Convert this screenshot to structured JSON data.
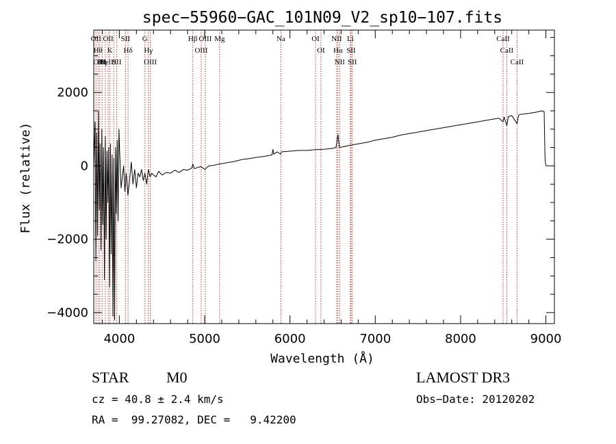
{
  "chart_data": {
    "type": "line",
    "title": "spec−55960−GAC_101N09_V2_sp10−107.fits",
    "xlabel": "Wavelength (Å)",
    "ylabel": "Flux (relative)",
    "xlim": [
      3700,
      9100
    ],
    "ylim": [
      -4300,
      3700
    ],
    "xticks": [
      4000,
      5000,
      6000,
      7000,
      8000,
      9000
    ],
    "xtick_labels": [
      "4000",
      "5000",
      "6000",
      "7000",
      "8000",
      "9000"
    ],
    "yticks": [
      -4000,
      -2000,
      0,
      2000
    ],
    "ytick_labels": [
      "−4000",
      "−2000",
      "0",
      "2000"
    ],
    "series": [
      {
        "name": "flux",
        "x": [
          3700,
          3715,
          3725,
          3735,
          3745,
          3755,
          3765,
          3775,
          3785,
          3795,
          3805,
          3815,
          3825,
          3835,
          3845,
          3855,
          3865,
          3875,
          3885,
          3895,
          3905,
          3915,
          3925,
          3935,
          3945,
          3955,
          3965,
          3975,
          3985,
          3995,
          4005,
          4020,
          4035,
          4050,
          4065,
          4080,
          4100,
          4120,
          4140,
          4160,
          4180,
          4200,
          4220,
          4240,
          4260,
          4280,
          4300,
          4320,
          4340,
          4360,
          4380,
          4400,
          4430,
          4460,
          4500,
          4550,
          4600,
          4650,
          4700,
          4750,
          4800,
          4850,
          4861,
          4880,
          4920,
          4960,
          5000,
          5050,
          5100,
          5150,
          5200,
          5250,
          5300,
          5350,
          5400,
          5450,
          5500,
          5550,
          5600,
          5650,
          5700,
          5750,
          5790,
          5800,
          5810,
          5830,
          5850,
          5890,
          5900,
          5950,
          6000,
          6100,
          6200,
          6300,
          6400,
          6500,
          6540,
          6563,
          6580,
          6600,
          6700,
          6800,
          6900,
          7000,
          7100,
          7200,
          7300,
          7400,
          7500,
          7600,
          7700,
          7800,
          7900,
          8000,
          8100,
          8200,
          8300,
          8400,
          8450,
          8498,
          8510,
          8542,
          8560,
          8600,
          8662,
          8680,
          8700,
          8800,
          8900,
          8950,
          8980,
          8990,
          9000
        ],
        "y": [
          -100,
          1200,
          -2600,
          900,
          -1900,
          1500,
          -1200,
          600,
          -2300,
          1000,
          -1600,
          500,
          -3100,
          800,
          -2000,
          400,
          -1000,
          500,
          -3300,
          600,
          -2400,
          300,
          -4100,
          200,
          -4200,
          500,
          -1300,
          700,
          -1500,
          1000,
          300,
          -600,
          -300,
          0,
          -700,
          -200,
          -800,
          -400,
          100,
          -500,
          -100,
          -600,
          -200,
          -300,
          -100,
          -400,
          -200,
          -500,
          -100,
          -300,
          -200,
          -250,
          -300,
          -150,
          -250,
          -180,
          -200,
          -120,
          -180,
          -100,
          -120,
          -60,
          50,
          -80,
          -40,
          -20,
          -100,
          0,
          10,
          40,
          60,
          80,
          100,
          120,
          150,
          180,
          190,
          210,
          230,
          240,
          260,
          280,
          300,
          450,
          320,
          350,
          380,
          320,
          380,
          390,
          400,
          420,
          420,
          440,
          450,
          480,
          500,
          850,
          500,
          510,
          560,
          600,
          640,
          700,
          740,
          780,
          840,
          880,
          920,
          960,
          1000,
          1040,
          1080,
          1120,
          1160,
          1200,
          1240,
          1280,
          1300,
          1200,
          1330,
          1100,
          1340,
          1370,
          1150,
          1380,
          1400,
          1430,
          1470,
          1500,
          1480,
          200,
          0
        ]
      }
    ],
    "lines": [
      {
        "x": 3726,
        "label": "OII"
      },
      {
        "x": 3750,
        "label": "Hθ"
      },
      {
        "x": 3770,
        "label": "OIII"
      },
      {
        "x": 3798,
        "label": "Hη"
      },
      {
        "x": 3835,
        "label": "Hel"
      },
      {
        "x": 3869,
        "label": "OII"
      },
      {
        "x": 3889,
        "label": "K"
      },
      {
        "x": 3934,
        "label": "H"
      },
      {
        "x": 3970,
        "label": "SII"
      },
      {
        "x": 4072,
        "label": "SII"
      },
      {
        "x": 4102,
        "label": "Hδ"
      },
      {
        "x": 4300,
        "label": "G"
      },
      {
        "x": 4340,
        "label": "Hγ"
      },
      {
        "x": 4363,
        "label": "OIII"
      },
      {
        "x": 4861,
        "label": "Hβ"
      },
      {
        "x": 4959,
        "label": "OIII"
      },
      {
        "x": 5007,
        "label": "OIII"
      },
      {
        "x": 5175,
        "label": "Mg"
      },
      {
        "x": 5894,
        "label": "Na"
      },
      {
        "x": 6300,
        "label": "OI"
      },
      {
        "x": 6363,
        "label": "OI"
      },
      {
        "x": 6548,
        "label": "NII"
      },
      {
        "x": 6563,
        "label": "Hα"
      },
      {
        "x": 6583,
        "label": "NII"
      },
      {
        "x": 6708,
        "label": "Li"
      },
      {
        "x": 6716,
        "label": "SII"
      },
      {
        "x": 6731,
        "label": "SII"
      },
      {
        "x": 8498,
        "label": "CaII"
      },
      {
        "x": 8542,
        "label": "CaII"
      },
      {
        "x": 8662,
        "label": "CaII"
      }
    ]
  },
  "info": {
    "object_type": "STAR",
    "subclass": "M0",
    "survey": "LAMOST DR3",
    "redshift": "cz = 40.8 ± 2.4 km/s",
    "obs_date": "Obs−Date: 20120202",
    "coords": "RA =  99.27082, DEC =   9.42200"
  }
}
